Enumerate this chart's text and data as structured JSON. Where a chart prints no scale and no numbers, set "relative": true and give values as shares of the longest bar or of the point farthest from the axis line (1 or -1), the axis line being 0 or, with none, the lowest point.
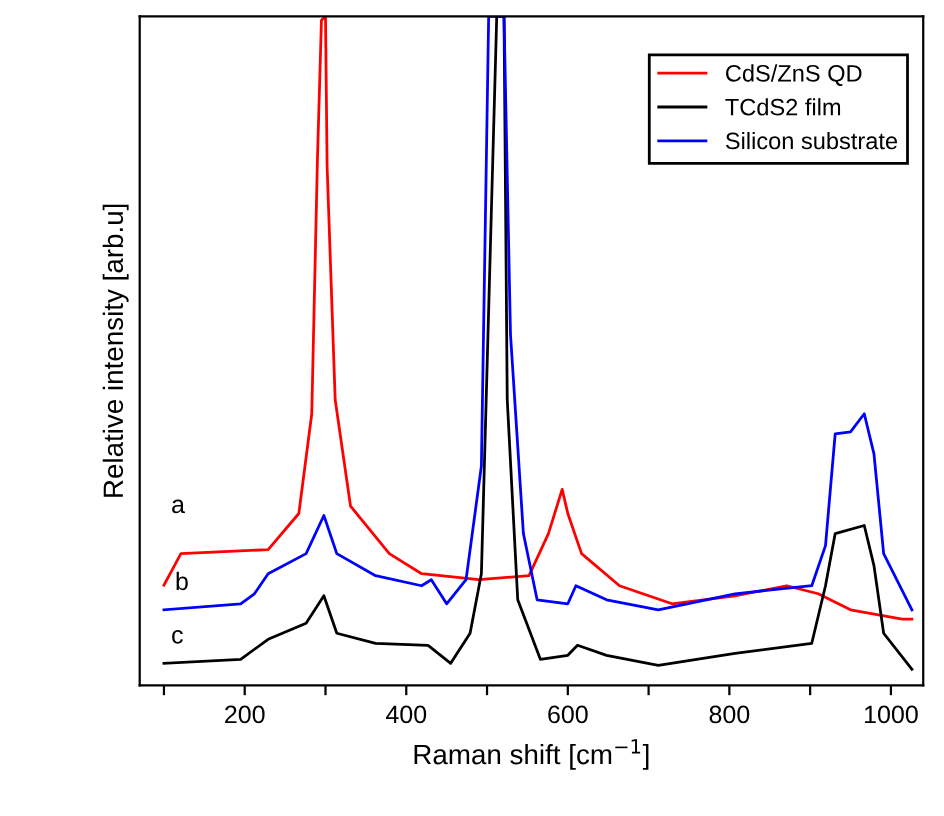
{
  "chart_data": {
    "type": "line",
    "relative": true,
    "xlabel": "Raman shift [cm$^{−1}$]",
    "ylabel": "Relative intensity [arb.u]",
    "xlim": [
      70,
      1040
    ],
    "xticks": [
      {
        "value": 100,
        "label": null
      },
      200,
      {
        "value": 300,
        "label": null
      },
      400,
      {
        "value": 500,
        "label": null
      },
      600,
      {
        "value": 700,
        "label": null
      },
      800,
      {
        "value": 900,
        "label": null
      },
      1000
    ],
    "legend": "top right",
    "grid": false,
    "marker": "none",
    "line_style": "solid",
    "annotations": [
      "a",
      "b",
      "c"
    ],
    "series": [
      {
        "name": "CdS/ZnS QD",
        "color": "#ff0000",
        "x": [
          100,
          121,
          229,
          267,
          283,
          290,
          295,
          300,
          302,
          312,
          331,
          379,
          419,
          490,
          552,
          576,
          593,
          600,
          617,
          664,
          729,
          807,
          871,
          910,
          950,
          1014,
          1026
        ],
        "values": [
          0.15,
          0.197,
          0.203,
          0.257,
          0.406,
          0.785,
          0.994,
          1.0,
          0.776,
          0.427,
          0.268,
          0.197,
          0.167,
          0.158,
          0.164,
          0.227,
          0.293,
          0.257,
          0.197,
          0.149,
          0.122,
          0.134,
          0.149,
          0.137,
          0.113,
          0.099,
          0.099
        ]
      },
      {
        "name": "TCdS2 film",
        "color": "#000000",
        "x": [
          100,
          195,
          229,
          276,
          298,
          314,
          362,
          427,
          455,
          479,
          493,
          512,
          521,
          525,
          538,
          566,
          600,
          612,
          648,
          712,
          807,
          902,
          919,
          931,
          967,
          979,
          991,
          1026
        ],
        "values": [
          0.033,
          0.039,
          0.069,
          0.093,
          0.134,
          0.078,
          0.063,
          0.06,
          0.033,
          0.078,
          0.167,
          1.0,
          1.0,
          0.427,
          0.128,
          0.039,
          0.045,
          0.06,
          0.045,
          0.03,
          0.048,
          0.063,
          0.149,
          0.227,
          0.239,
          0.179,
          0.078,
          0.024
        ]
      },
      {
        "name": "Silicon substrate",
        "color": "#0000ff",
        "x": [
          100,
          195,
          212,
          229,
          276,
          298,
          314,
          362,
          419,
          431,
          450,
          474,
          493,
          502,
          521,
          529,
          545,
          562,
          600,
          610,
          648,
          712,
          807,
          902,
          919,
          931,
          950,
          967,
          979,
          991,
          1026
        ],
        "values": [
          0.113,
          0.122,
          0.137,
          0.167,
          0.197,
          0.254,
          0.197,
          0.164,
          0.149,
          0.158,
          0.122,
          0.158,
          0.328,
          1.0,
          1.0,
          0.525,
          0.227,
          0.128,
          0.122,
          0.149,
          0.128,
          0.113,
          0.137,
          0.149,
          0.209,
          0.376,
          0.379,
          0.406,
          0.346,
          0.197,
          0.113
        ]
      }
    ]
  }
}
